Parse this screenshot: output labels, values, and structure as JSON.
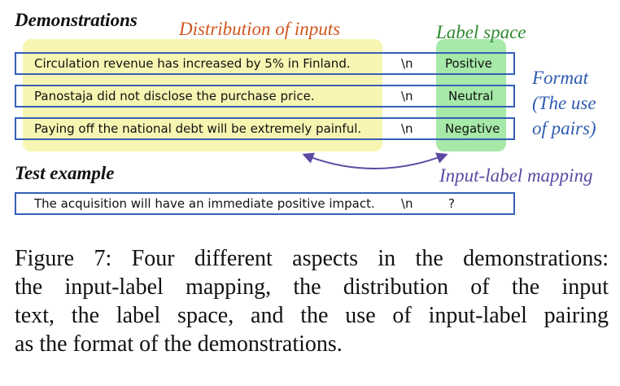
{
  "headings": {
    "demonstrations": "Demonstrations",
    "test_example": "Test example"
  },
  "aspects": {
    "distribution": "Distribution of inputs",
    "label_space": "Label space",
    "format_lines": [
      "Format",
      "(The use",
      "of pairs)"
    ],
    "mapping": "Input-label mapping"
  },
  "demonstrations": [
    {
      "input": "Circulation revenue has increased by 5% in Finland.",
      "sep": "\\n",
      "label": "Positive"
    },
    {
      "input": "Panostaja did not disclose the purchase price.",
      "sep": "\\n",
      "label": "Neutral"
    },
    {
      "input": "Paying off the national debt will be extremely painful.",
      "sep": "\\n",
      "label": "Negative"
    }
  ],
  "test": {
    "input": "The acquisition will have an immediate positive impact.",
    "sep": "\\n",
    "label": "?"
  },
  "caption_lines": [
    "Figure 7: Four different aspects in the demonstrations:",
    "the input-label mapping, the distribution of the input",
    "text, the label space, and the use of input-label pairing",
    "as the format of the demonstrations."
  ],
  "colors": {
    "distribution": "#d0561f",
    "label_space": "#2e8a2e",
    "format": "#2f5cb0",
    "mapping": "#5c4aa3",
    "box_border": "#3560b8",
    "yellow_highlight": "#f7f5b2",
    "green_highlight": "#a6e9a8"
  }
}
